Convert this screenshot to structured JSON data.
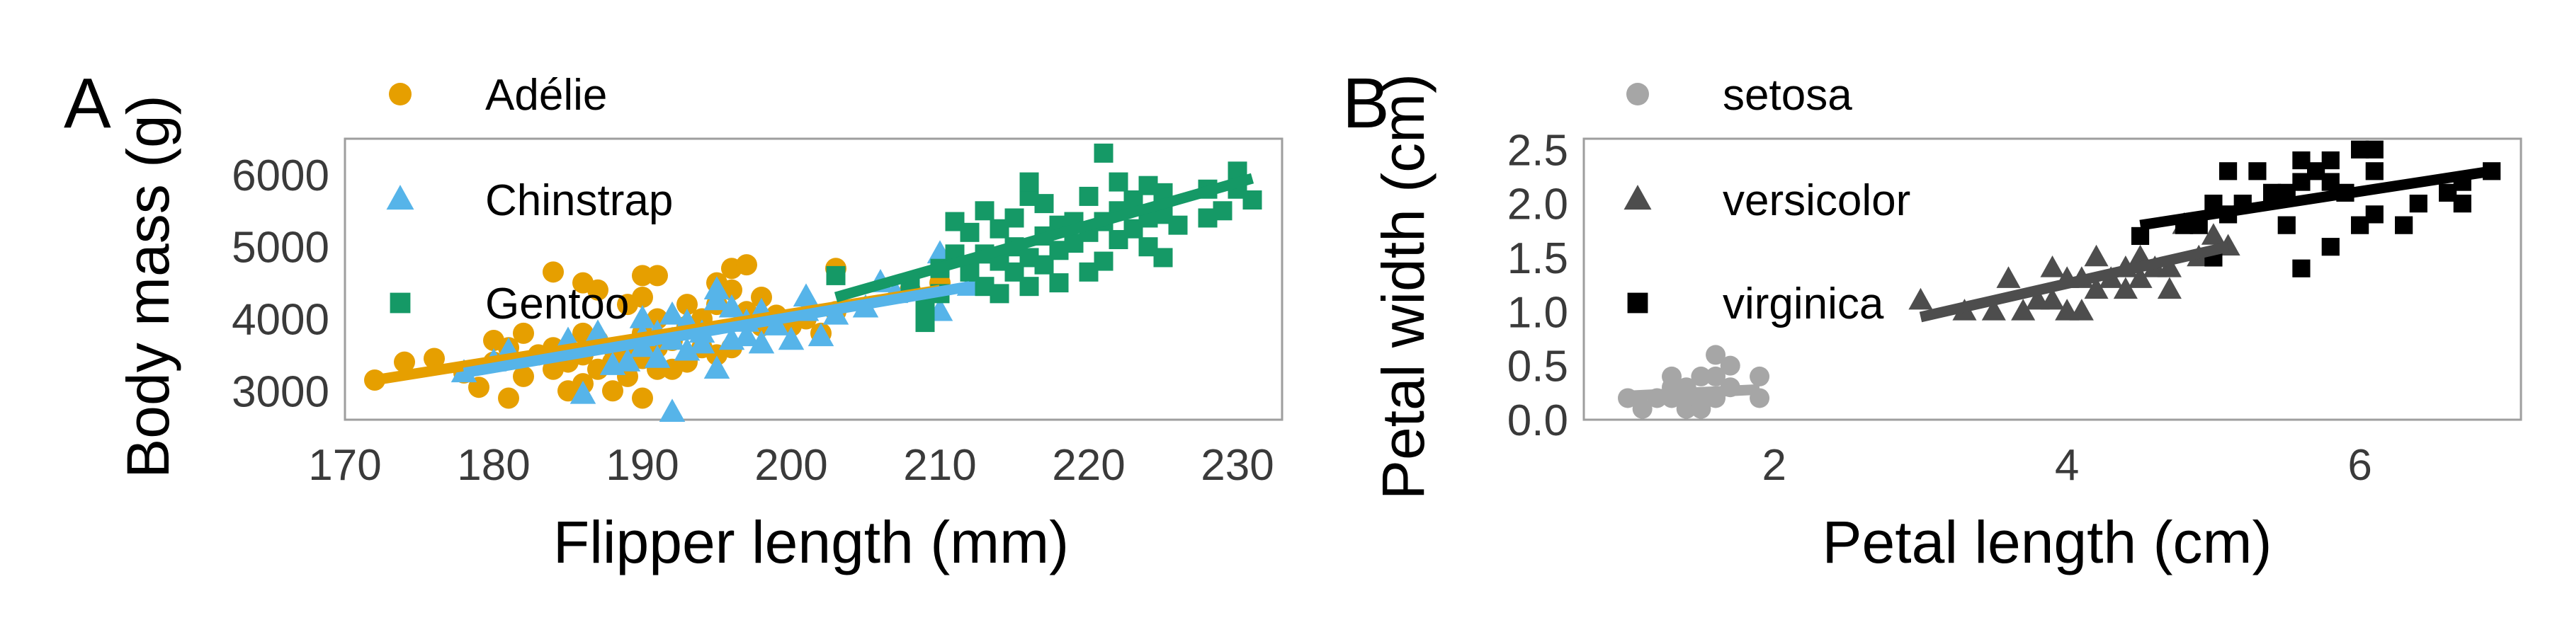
{
  "chart_data": [
    {
      "type": "scatter",
      "panel_label": "A",
      "xlabel": "Flipper length (mm)",
      "ylabel": "Body mass (g)",
      "xlim": [
        170,
        233
      ],
      "ylim": [
        2600,
        6500
      ],
      "xticks": [
        170,
        180,
        190,
        200,
        210,
        220,
        230
      ],
      "yticks": [
        3000,
        4000,
        5000,
        6000
      ],
      "grid": false,
      "legend_position": "top-left",
      "series": [
        {
          "name": "Adélie",
          "marker": "circle",
          "color": "#e69f00",
          "fit": {
            "x": [
              172,
              210
            ],
            "y": [
              3150,
              4400
            ]
          },
          "points": [
            [
              172,
              3150
            ],
            [
              174,
              3400
            ],
            [
              176,
              3450
            ],
            [
              178,
              3250
            ],
            [
              179,
              3050
            ],
            [
              180,
              3400
            ],
            [
              180,
              3700
            ],
            [
              181,
              3600
            ],
            [
              181,
              2900
            ],
            [
              182,
              3200
            ],
            [
              182,
              3800
            ],
            [
              183,
              3500
            ],
            [
              184,
              3300
            ],
            [
              184,
              3600
            ],
            [
              184,
              4650
            ],
            [
              185,
              3400
            ],
            [
              185,
              3000
            ],
            [
              186,
              3100
            ],
            [
              186,
              3500
            ],
            [
              186,
              3800
            ],
            [
              186,
              4500
            ],
            [
              187,
              3300
            ],
            [
              187,
              3700
            ],
            [
              187,
              4400
            ],
            [
              188,
              3000
            ],
            [
              188,
              3400
            ],
            [
              188,
              3600
            ],
            [
              189,
              3200
            ],
            [
              189,
              3550
            ],
            [
              189,
              4200
            ],
            [
              190,
              2900
            ],
            [
              190,
              3450
            ],
            [
              190,
              3800
            ],
            [
              190,
              4300
            ],
            [
              190,
              4600
            ],
            [
              191,
              3300
            ],
            [
              191,
              3600
            ],
            [
              191,
              4000
            ],
            [
              191,
              4600
            ],
            [
              192,
              3300
            ],
            [
              192,
              3700
            ],
            [
              193,
              3400
            ],
            [
              193,
              3900
            ],
            [
              193,
              4200
            ],
            [
              194,
              3600
            ],
            [
              194,
              4000
            ],
            [
              195,
              3500
            ],
            [
              195,
              4200
            ],
            [
              195,
              4500
            ],
            [
              196,
              3600
            ],
            [
              196,
              4400
            ],
            [
              196,
              4700
            ],
            [
              197,
              4100
            ],
            [
              197,
              4750
            ],
            [
              198,
              3900
            ],
            [
              198,
              4300
            ],
            [
              199,
              4050
            ],
            [
              200,
              3900
            ],
            [
              201,
              4000
            ],
            [
              202,
              3800
            ],
            [
              203,
              4100
            ],
            [
              203,
              4700
            ],
            [
              208,
              4400
            ],
            [
              210,
              4500
            ]
          ]
        },
        {
          "name": "Chinstrap",
          "marker": "triangle",
          "color": "#56b4e9",
          "fit": {
            "x": [
              178,
              212
            ],
            "y": [
              3250,
              4450
            ]
          },
          "points": [
            [
              178,
              3250
            ],
            [
              180,
              3400
            ],
            [
              181,
              3550
            ],
            [
              185,
              3700
            ],
            [
              186,
              2950
            ],
            [
              187,
              3650
            ],
            [
              187,
              3800
            ],
            [
              188,
              3350
            ],
            [
              189,
              3400
            ],
            [
              190,
              3600
            ],
            [
              190,
              3750
            ],
            [
              190,
              4000
            ],
            [
              191,
              3450
            ],
            [
              191,
              3800
            ],
            [
              192,
              2700
            ],
            [
              192,
              3700
            ],
            [
              192,
              4050
            ],
            [
              193,
              3550
            ],
            [
              193,
              3950
            ],
            [
              194,
              3800
            ],
            [
              194,
              3650
            ],
            [
              195,
              3300
            ],
            [
              195,
              4400
            ],
            [
              195,
              4250
            ],
            [
              196,
              3700
            ],
            [
              196,
              4150
            ],
            [
              197,
              3950
            ],
            [
              197,
              3750
            ],
            [
              198,
              3650
            ],
            [
              198,
              4100
            ],
            [
              199,
              3900
            ],
            [
              200,
              3700
            ],
            [
              201,
              4300
            ],
            [
              201,
              4100
            ],
            [
              202,
              3750
            ],
            [
              203,
              4050
            ],
            [
              205,
              4150
            ],
            [
              206,
              4500
            ],
            [
              207,
              4350
            ],
            [
              210,
              4100
            ],
            [
              210,
              4900
            ],
            [
              212,
              4450
            ]
          ]
        },
        {
          "name": "Gentoo",
          "marker": "square",
          "color": "#159966",
          "fit": {
            "x": [
              203,
              231
            ],
            "y": [
              4300,
              5950
            ]
          },
          "points": [
            [
              203,
              4600
            ],
            [
              208,
              4450
            ],
            [
              209,
              3950
            ],
            [
              209,
              4200
            ],
            [
              210,
              4350
            ],
            [
              210,
              4700
            ],
            [
              211,
              4900
            ],
            [
              211,
              5350
            ],
            [
              212,
              4650
            ],
            [
              212,
              5200
            ],
            [
              213,
              4450
            ],
            [
              213,
              4900
            ],
            [
              213,
              5500
            ],
            [
              214,
              4350
            ],
            [
              214,
              4800
            ],
            [
              214,
              5250
            ],
            [
              215,
              4650
            ],
            [
              215,
              5000
            ],
            [
              215,
              5400
            ],
            [
              216,
              4450
            ],
            [
              216,
              4850
            ],
            [
              216,
              5700
            ],
            [
              216,
              5900
            ],
            [
              217,
              4750
            ],
            [
              217,
              5150
            ],
            [
              217,
              5600
            ],
            [
              218,
              4500
            ],
            [
              218,
              4950
            ],
            [
              218,
              5300
            ],
            [
              219,
              5050
            ],
            [
              219,
              5350
            ],
            [
              220,
              4650
            ],
            [
              220,
              5200
            ],
            [
              220,
              5700
            ],
            [
              221,
              4800
            ],
            [
              221,
              5350
            ],
            [
              221,
              6300
            ],
            [
              222,
              5100
            ],
            [
              222,
              5500
            ],
            [
              222,
              5900
            ],
            [
              223,
              5250
            ],
            [
              223,
              5650
            ],
            [
              224,
              5000
            ],
            [
              224,
              5400
            ],
            [
              224,
              5850
            ],
            [
              225,
              4850
            ],
            [
              225,
              5450
            ],
            [
              225,
              5750
            ],
            [
              226,
              5300
            ],
            [
              228,
              5400
            ],
            [
              228,
              5800
            ],
            [
              229,
              5500
            ],
            [
              230,
              5800
            ],
            [
              230,
              6050
            ],
            [
              231,
              5650
            ]
          ]
        }
      ]
    },
    {
      "type": "scatter",
      "panel_label": "B",
      "xlabel": "Petal length (cm)",
      "ylabel": "Petal width (cm)",
      "xlim": [
        0.7,
        7.1
      ],
      "ylim": [
        0.0,
        2.6
      ],
      "xticks": [
        2,
        4,
        6
      ],
      "yticks": [
        0.0,
        0.5,
        1.0,
        1.5,
        2.0,
        2.5
      ],
      "ytick_labels": [
        "0.0",
        "0.5",
        "1.0",
        "1.5",
        "2.0",
        "2.5"
      ],
      "grid": false,
      "legend_position": "top-left",
      "series": [
        {
          "name": "setosa",
          "marker": "circle",
          "color": "#a6a6a6",
          "fit": {
            "x": [
              1.0,
              1.9
            ],
            "y": [
              0.22,
              0.28
            ]
          },
          "points": [
            [
              1.0,
              0.2
            ],
            [
              1.1,
              0.1
            ],
            [
              1.2,
              0.2
            ],
            [
              1.3,
              0.2
            ],
            [
              1.3,
              0.3
            ],
            [
              1.3,
              0.4
            ],
            [
              1.4,
              0.1
            ],
            [
              1.4,
              0.2
            ],
            [
              1.4,
              0.3
            ],
            [
              1.5,
              0.1
            ],
            [
              1.5,
              0.2
            ],
            [
              1.5,
              0.4
            ],
            [
              1.6,
              0.2
            ],
            [
              1.6,
              0.4
            ],
            [
              1.6,
              0.6
            ],
            [
              1.7,
              0.3
            ],
            [
              1.7,
              0.5
            ],
            [
              1.9,
              0.2
            ],
            [
              1.9,
              0.4
            ]
          ]
        },
        {
          "name": "versicolor",
          "marker": "triangle",
          "color": "#4d4d4d",
          "fit": {
            "x": [
              3.0,
              5.1
            ],
            "y": [
              0.95,
              1.6
            ]
          },
          "points": [
            [
              3.0,
              1.1
            ],
            [
              3.3,
              1.0
            ],
            [
              3.5,
              1.0
            ],
            [
              3.6,
              1.3
            ],
            [
              3.7,
              1.0
            ],
            [
              3.8,
              1.1
            ],
            [
              3.9,
              1.1
            ],
            [
              3.9,
              1.4
            ],
            [
              4.0,
              1.0
            ],
            [
              4.0,
              1.3
            ],
            [
              4.1,
              1.0
            ],
            [
              4.1,
              1.3
            ],
            [
              4.2,
              1.2
            ],
            [
              4.2,
              1.5
            ],
            [
              4.3,
              1.3
            ],
            [
              4.4,
              1.2
            ],
            [
              4.4,
              1.4
            ],
            [
              4.5,
              1.3
            ],
            [
              4.5,
              1.5
            ],
            [
              4.6,
              1.4
            ],
            [
              4.7,
              1.2
            ],
            [
              4.7,
              1.4
            ],
            [
              4.8,
              1.8
            ],
            [
              4.9,
              1.5
            ],
            [
              5.0,
              1.7
            ],
            [
              5.1,
              1.6
            ]
          ]
        },
        {
          "name": "virginica",
          "marker": "square",
          "color": "#000000",
          "fit": {
            "x": [
              4.5,
              6.9
            ],
            "y": [
              1.8,
              2.3
            ]
          },
          "points": [
            [
              4.5,
              1.7
            ],
            [
              4.8,
              1.8
            ],
            [
              4.9,
              1.8
            ],
            [
              5.0,
              1.5
            ],
            [
              5.0,
              2.0
            ],
            [
              5.1,
              1.9
            ],
            [
              5.1,
              2.3
            ],
            [
              5.2,
              2.0
            ],
            [
              5.3,
              2.3
            ],
            [
              5.4,
              2.1
            ],
            [
              5.5,
              1.8
            ],
            [
              5.5,
              2.1
            ],
            [
              5.6,
              1.4
            ],
            [
              5.6,
              2.2
            ],
            [
              5.6,
              2.4
            ],
            [
              5.7,
              2.3
            ],
            [
              5.8,
              1.6
            ],
            [
              5.8,
              2.2
            ],
            [
              5.8,
              2.4
            ],
            [
              5.9,
              2.1
            ],
            [
              6.0,
              1.8
            ],
            [
              6.0,
              2.5
            ],
            [
              6.1,
              1.9
            ],
            [
              6.1,
              2.3
            ],
            [
              6.1,
              2.5
            ],
            [
              6.3,
              1.8
            ],
            [
              6.4,
              2.0
            ],
            [
              6.6,
              2.1
            ],
            [
              6.7,
              2.0
            ],
            [
              6.7,
              2.2
            ],
            [
              6.9,
              2.3
            ]
          ]
        }
      ]
    }
  ]
}
